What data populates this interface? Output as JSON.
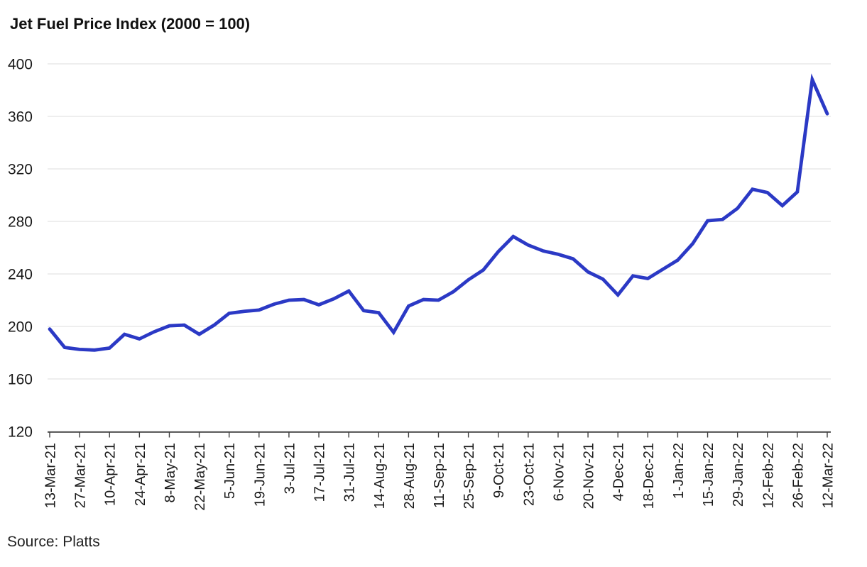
{
  "chart": {
    "title": "Jet Fuel Price Index (2000 = 100)",
    "source": "Source: Platts"
  },
  "chart_data": {
    "type": "line",
    "title": "Jet Fuel Price Index (2000 = 100)",
    "source": "Source: Platts",
    "xlabel": "",
    "ylabel": "",
    "ylim": [
      120,
      400
    ],
    "y_ticks": [
      120,
      160,
      200,
      240,
      280,
      320,
      360,
      400
    ],
    "grid": true,
    "legend": false,
    "x_tick_every": 2,
    "x": [
      "13-Mar-21",
      "20-Mar-21",
      "27-Mar-21",
      "3-Apr-21",
      "10-Apr-21",
      "17-Apr-21",
      "24-Apr-21",
      "1-May-21",
      "8-May-21",
      "15-May-21",
      "22-May-21",
      "29-May-21",
      "5-Jun-21",
      "12-Jun-21",
      "19-Jun-21",
      "26-Jun-21",
      "3-Jul-21",
      "10-Jul-21",
      "17-Jul-21",
      "24-Jul-21",
      "31-Jul-21",
      "7-Aug-21",
      "14-Aug-21",
      "21-Aug-21",
      "28-Aug-21",
      "4-Sep-21",
      "11-Sep-21",
      "18-Sep-21",
      "25-Sep-21",
      "2-Oct-21",
      "9-Oct-21",
      "16-Oct-21",
      "23-Oct-21",
      "30-Oct-21",
      "6-Nov-21",
      "13-Nov-21",
      "20-Nov-21",
      "27-Nov-21",
      "4-Dec-21",
      "11-Dec-21",
      "18-Dec-21",
      "25-Dec-21",
      "1-Jan-22",
      "8-Jan-22",
      "15-Jan-22",
      "22-Jan-22",
      "29-Jan-22",
      "5-Feb-22",
      "12-Feb-22",
      "19-Feb-22",
      "26-Feb-22",
      "5-Mar-22",
      "12-Mar-22"
    ],
    "x_tick_labels": [
      "13-Mar-21",
      "27-Mar-21",
      "10-Apr-21",
      "24-Apr-21",
      "8-May-21",
      "22-May-21",
      "5-Jun-21",
      "19-Jun-21",
      "3-Jul-21",
      "17-Jul-21",
      "31-Jul-21",
      "14-Aug-21",
      "28-Aug-21",
      "11-Sep-21",
      "25-Sep-21",
      "9-Oct-21",
      "23-Oct-21",
      "6-Nov-21",
      "20-Nov-21",
      "4-Dec-21",
      "18-Dec-21",
      "1-Jan-22",
      "15-Jan-22",
      "29-Jan-22",
      "12-Feb-22",
      "26-Feb-22",
      "12-Mar-22"
    ],
    "values": [
      198,
      184,
      182.5,
      182,
      183.5,
      194,
      190.5,
      196,
      200.5,
      201,
      194,
      201,
      210,
      211.5,
      212.5,
      217,
      220,
      220.5,
      216.5,
      221,
      227,
      212,
      210.5,
      195.5,
      215.5,
      220.5,
      220,
      226.5,
      235.5,
      243,
      257,
      268.5,
      262,
      257.5,
      255,
      251.5,
      241.5,
      236,
      224,
      238.5,
      236.5,
      243.5,
      250.5,
      263,
      280.5,
      281.5,
      290,
      304.5,
      302,
      292,
      302.5,
      388,
      362
    ],
    "line_color": "#2b39c5",
    "grid_color": "#e9e9e9",
    "axis_color": "#3f3f3f",
    "label_color": "#1a1a1a",
    "background_color": "#ffffff"
  }
}
